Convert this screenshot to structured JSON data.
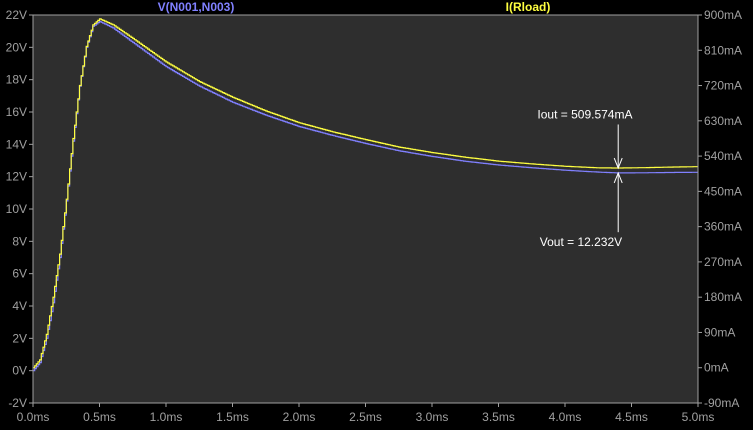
{
  "chart_data": {
    "type": "line",
    "background_color": "#2e2e2e",
    "outer_background_color": "#000000",
    "axis_color": "#a0a0a0",
    "grid": false,
    "x": {
      "label": "",
      "range": [
        0.0,
        5.0
      ],
      "ticks": [
        0.0,
        0.5,
        1.0,
        1.5,
        2.0,
        2.5,
        3.0,
        3.5,
        4.0,
        4.5,
        5.0
      ],
      "tick_labels": [
        "0.0ms",
        "0.5ms",
        "1.0ms",
        "1.5ms",
        "2.0ms",
        "2.5ms",
        "3.0ms",
        "3.5ms",
        "4.0ms",
        "4.5ms",
        "5.0ms"
      ]
    },
    "y_left": {
      "range": [
        -2,
        22
      ],
      "ticks": [
        -2,
        0,
        2,
        4,
        6,
        8,
        10,
        12,
        14,
        16,
        18,
        20,
        22
      ],
      "tick_labels": [
        "-2V",
        "0V",
        "2V",
        "4V",
        "6V",
        "8V",
        "10V",
        "12V",
        "14V",
        "16V",
        "18V",
        "20V",
        "22V"
      ]
    },
    "y_right": {
      "range": [
        -90,
        900
      ],
      "ticks": [
        -90,
        0,
        90,
        180,
        270,
        360,
        450,
        540,
        630,
        720,
        810,
        900
      ],
      "tick_labels": [
        "-90mA",
        "0mA",
        "90mA",
        "180mA",
        "270mA",
        "360mA",
        "450mA",
        "540mA",
        "630mA",
        "720mA",
        "810mA",
        "900mA"
      ]
    },
    "series": [
      {
        "name": "V(N001,N003)",
        "axis": "left",
        "color": "#8080ff",
        "x": [
          0.0,
          0.05,
          0.1,
          0.15,
          0.2,
          0.25,
          0.3,
          0.35,
          0.4,
          0.45,
          0.5,
          0.6,
          0.75,
          1.0,
          1.25,
          1.5,
          1.75,
          2.0,
          2.25,
          2.5,
          2.75,
          3.0,
          3.25,
          3.5,
          3.75,
          4.0,
          4.25,
          4.4,
          4.6,
          4.8,
          5.0
        ],
        "y": [
          0.0,
          0.5,
          2.0,
          4.2,
          7.0,
          10.5,
          14.2,
          17.6,
          20.0,
          21.3,
          21.6,
          21.2,
          20.3,
          18.8,
          17.6,
          16.6,
          15.8,
          15.1,
          14.55,
          14.05,
          13.6,
          13.25,
          12.95,
          12.72,
          12.55,
          12.4,
          12.28,
          12.23,
          12.24,
          12.26,
          12.27
        ]
      },
      {
        "name": "I(Rload)",
        "axis": "right",
        "color": "#ffff40",
        "x": [
          0.0,
          0.05,
          0.1,
          0.15,
          0.2,
          0.25,
          0.3,
          0.35,
          0.4,
          0.45,
          0.5,
          0.6,
          0.75,
          1.0,
          1.25,
          1.5,
          1.75,
          2.0,
          2.25,
          2.5,
          2.75,
          3.0,
          3.25,
          3.5,
          3.75,
          4.0,
          4.25,
          4.4,
          4.6,
          4.8,
          5.0
        ],
        "y": [
          0,
          20,
          85,
          180,
          290,
          430,
          585,
          720,
          820,
          875,
          890,
          875,
          840,
          780,
          730,
          690,
          655,
          625,
          602,
          582,
          563,
          549,
          537,
          527,
          520,
          514,
          510,
          509.6,
          510.5,
          512,
          513
        ]
      }
    ],
    "annotations": [
      {
        "text": "Iout = 509.574mA",
        "target_x": 4.4,
        "target_y": 509.574,
        "axis": "right",
        "label_x": 4.15,
        "label_y": 15.6,
        "color": "#ffffff"
      },
      {
        "text": "Vout = 12.232V",
        "target_x": 4.4,
        "target_y": 12.232,
        "axis": "left",
        "label_x": 4.12,
        "label_y": 7.7,
        "color": "#ffffff"
      }
    ]
  }
}
